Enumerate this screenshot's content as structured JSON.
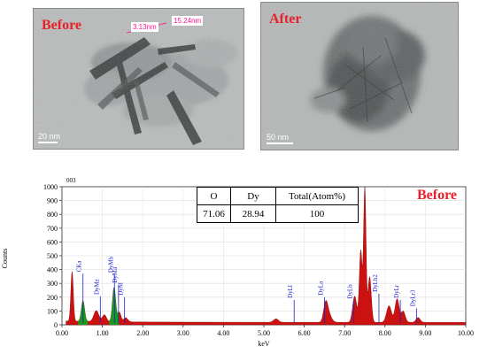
{
  "images": {
    "before": {
      "label": "Before",
      "scale_bar": "20 nm",
      "measurements": [
        "3.13nm",
        "15.24nm"
      ]
    },
    "after": {
      "label": "After",
      "scale_bar": "50 nm"
    }
  },
  "table": {
    "headers": [
      "O",
      "Dy",
      "Total(Atom%)"
    ],
    "values": [
      "71.06",
      "28.94",
      "100"
    ]
  },
  "colors": {
    "label_red": "#e8202a",
    "spectrum_fill": "#cc1111",
    "highlight_green": "#1a9a1a",
    "annotation_blue": "#1f1fd0",
    "measure_pink": "#ff1493"
  },
  "chart_data": {
    "type": "area",
    "title": "Before",
    "corner_label": "003",
    "xlabel": "keV",
    "ylabel": "Counts",
    "xlim": [
      0,
      10
    ],
    "ylim": [
      0,
      1000
    ],
    "x_ticks": [
      "0.00",
      "1.00",
      "2.00",
      "3.00",
      "4.00",
      "5.00",
      "6.00",
      "7.00",
      "8.00",
      "9.00",
      "10.00"
    ],
    "y_ticks": [
      "0",
      "100",
      "200",
      "300",
      "400",
      "500",
      "600",
      "700",
      "800",
      "900",
      "1000"
    ],
    "peaks": [
      {
        "x": 0.25,
        "h": 360,
        "w": 0.03
      },
      {
        "x": 0.52,
        "h": 150,
        "w": 0.04,
        "color": "green"
      },
      {
        "x": 0.85,
        "h": 80,
        "w": 0.06
      },
      {
        "x": 1.05,
        "h": 50,
        "w": 0.05
      },
      {
        "x": 1.29,
        "h": 250,
        "w": 0.04,
        "color": "green"
      },
      {
        "x": 1.42,
        "h": 70,
        "w": 0.04
      },
      {
        "x": 1.58,
        "h": 30,
        "w": 0.05
      },
      {
        "x": 5.3,
        "h": 25,
        "w": 0.06
      },
      {
        "x": 6.53,
        "h": 120,
        "w": 0.05
      },
      {
        "x": 6.6,
        "h": 60,
        "w": 0.07
      },
      {
        "x": 7.25,
        "h": 190,
        "w": 0.05
      },
      {
        "x": 7.4,
        "h": 520,
        "w": 0.035
      },
      {
        "x": 7.5,
        "h": 970,
        "w": 0.03
      },
      {
        "x": 7.62,
        "h": 330,
        "w": 0.04
      },
      {
        "x": 8.1,
        "h": 120,
        "w": 0.06
      },
      {
        "x": 8.3,
        "h": 170,
        "w": 0.05
      },
      {
        "x": 8.45,
        "h": 80,
        "w": 0.05
      },
      {
        "x": 8.82,
        "h": 35,
        "w": 0.05
      }
    ],
    "annotations": [
      {
        "label": "CKa",
        "x": 0.52,
        "y_line": 370
      },
      {
        "label": "DyMz",
        "x": 0.95,
        "y_line": 205
      },
      {
        "label": "DyMb",
        "x": 1.3,
        "y_line": 365
      },
      {
        "label": "DyMa",
        "x": 1.4,
        "y_line": 290
      },
      {
        "label": "DyM",
        "x": 1.55,
        "y_line": 200
      },
      {
        "label": "DyLl",
        "x": 5.75,
        "y_line": 180
      },
      {
        "label": "DyLa",
        "x": 6.5,
        "y_line": 200
      },
      {
        "label": "DyLb",
        "x": 7.23,
        "y_line": 175
      },
      {
        "label": "DyLb2",
        "x": 7.85,
        "y_line": 225
      },
      {
        "label": "DyLr",
        "x": 8.38,
        "y_line": 180
      },
      {
        "label": "DyLr3",
        "x": 8.78,
        "y_line": 120
      }
    ]
  }
}
